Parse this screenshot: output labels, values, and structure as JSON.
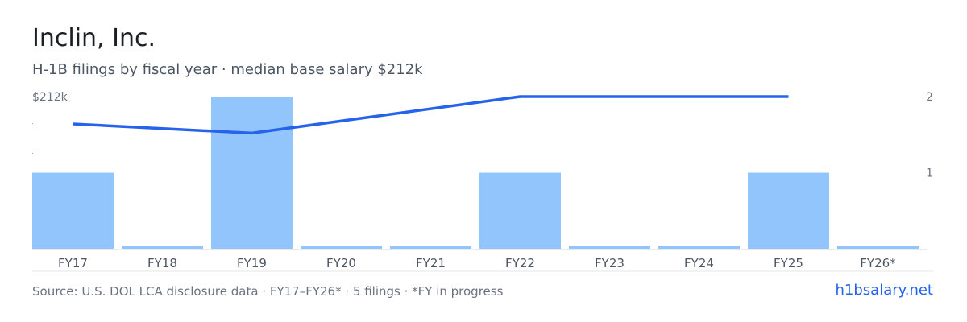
{
  "header": {
    "title": "Inclin, Inc.",
    "subtitle": "H-1B filings by fiscal year · median base salary $212k"
  },
  "footer": {
    "source": "Source: U.S. DOL LCA disclosure data · FY17–FY26* · 5 filings · *FY in progress",
    "link": "h1bsalary.net"
  },
  "colors": {
    "bar": "#93c5fd",
    "line": "#2563eb",
    "axis_line": "#d1d5db",
    "text_muted": "#6b7280"
  },
  "chart_data": {
    "type": "bar",
    "categories": [
      "FY17",
      "FY18",
      "FY19",
      "FY20",
      "FY21",
      "FY22",
      "FY23",
      "FY24",
      "FY25",
      "FY26*"
    ],
    "series": [
      {
        "type": "bar",
        "axis": "right",
        "values": [
          1,
          0,
          2,
          0,
          0,
          1,
          0,
          0,
          1,
          0
        ]
      },
      {
        "type": "line",
        "axis": "left",
        "values": [
          null,
          null,
          null,
          null,
          null,
          null,
          null,
          null,
          null,
          null
        ]
      }
    ],
    "left_axis": {
      "top_label": "$212k"
    },
    "right_axis": {
      "ticks": [
        1,
        2
      ],
      "ylim": [
        0,
        2
      ]
    },
    "line_relative_points": [
      {
        "x": "FY17",
        "value": 0.82
      },
      {
        "x": "FY19",
        "value": 0.76
      },
      {
        "x": "FY22",
        "value": 1.0
      },
      {
        "x": "FY25",
        "value": 1.0
      }
    ],
    "grid": false,
    "legend": "none"
  }
}
